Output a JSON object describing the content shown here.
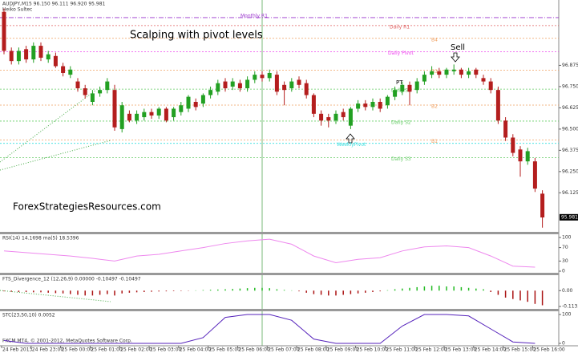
{
  "chart_data": [
    {
      "type": "candlestick",
      "header": "AUDJPY,M15  96.150 96.111 96.920 95.981",
      "subheader": "Heiko Sultec",
      "title": "Scalping with pivot levels",
      "watermark": "ForexStrategiesResources.com",
      "annotations": [
        "Sell",
        "PT"
      ],
      "bull_color": "#22a022",
      "bear_color": "#b41e1e",
      "ylim": [
        95.9,
        97.25
      ],
      "yticks": [
        {
          "value": 96.875,
          "label": "96.875"
        },
        {
          "value": 96.75,
          "label": "96.750"
        },
        {
          "value": 96.625,
          "label": "96.625"
        },
        {
          "value": 96.5,
          "label": "96.500"
        },
        {
          "value": 96.375,
          "label": "96.375"
        },
        {
          "value": 96.25,
          "label": "96.250"
        },
        {
          "value": 96.125,
          "label": "96.125"
        }
      ],
      "last": 95.981,
      "levels": [
        {
          "name": "Monthly R1",
          "value": 97.156,
          "color": "#9933cc"
        },
        {
          "name": "Daily R1",
          "value": 97.109,
          "color": "#e06060"
        },
        {
          "name": "B4",
          "value": 97.034,
          "color": "#f0a060"
        },
        {
          "name": "Daily Pivot",
          "value": 96.955,
          "color": "#ee44ee"
        },
        {
          "name": "B3",
          "value": 96.847,
          "color": "#f0a060"
        },
        {
          "name": "Daily S1",
          "value": 96.735,
          "color": "#66cc66"
        },
        {
          "name": "B2",
          "value": 96.641,
          "color": "#f0a060"
        },
        {
          "name": "Daily S2",
          "value": 96.547,
          "color": "#66cc66"
        },
        {
          "name": "B1",
          "value": 96.435,
          "color": "#f0a060"
        },
        {
          "name": "WeeklyPivot",
          "value": 96.416,
          "color": "#33dddd"
        },
        {
          "name": "Daily S3",
          "value": 96.332,
          "color": "#66cc66"
        }
      ],
      "xticks": [
        {
          "value": 0,
          "label": "24 Feb 2013"
        },
        {
          "value": 4,
          "label": "24 Feb 23:00"
        },
        {
          "value": 8,
          "label": "25 Feb 00:00"
        },
        {
          "value": 12,
          "label": "25 Feb 01:00"
        },
        {
          "value": 16,
          "label": "25 Feb 02:00"
        },
        {
          "value": 20,
          "label": "25 Feb 03:00"
        },
        {
          "value": 24,
          "label": "25 Feb 04:00"
        },
        {
          "value": 28,
          "label": "25 Feb 05:00"
        },
        {
          "value": 32,
          "label": "25 Feb 06:00"
        },
        {
          "value": 36,
          "label": "25 Feb 07:00"
        },
        {
          "value": 40,
          "label": "25 Feb 08:00"
        },
        {
          "value": 44,
          "label": "25 Feb 09:00"
        },
        {
          "value": 48,
          "label": "25 Feb 10:00"
        },
        {
          "value": 52,
          "label": "25 Feb 11:00"
        },
        {
          "value": 56,
          "label": "25 Feb 12:00"
        },
        {
          "value": 60,
          "label": "25 Feb 13:00"
        },
        {
          "value": 64,
          "label": "25 Feb 14:00"
        },
        {
          "value": 68,
          "label": "25 Feb 15:00"
        },
        {
          "value": 72,
          "label": "25 Feb 16:00"
        }
      ],
      "candles": [
        {
          "o": 97.19,
          "h": 97.21,
          "l": 96.94,
          "c": 96.96
        },
        {
          "o": 96.96,
          "h": 96.98,
          "l": 96.88,
          "c": 96.9
        },
        {
          "o": 96.9,
          "h": 96.98,
          "l": 96.88,
          "c": 96.96
        },
        {
          "o": 96.97,
          "h": 96.99,
          "l": 96.89,
          "c": 96.91
        },
        {
          "o": 96.91,
          "h": 97.01,
          "l": 96.89,
          "c": 96.99
        },
        {
          "o": 96.99,
          "h": 97.01,
          "l": 96.9,
          "c": 96.92
        },
        {
          "o": 96.91,
          "h": 96.96,
          "l": 96.89,
          "c": 96.94
        },
        {
          "o": 96.93,
          "h": 96.95,
          "l": 96.86,
          "c": 96.87
        },
        {
          "o": 96.87,
          "h": 96.89,
          "l": 96.81,
          "c": 96.83
        },
        {
          "o": 96.82,
          "h": 96.87,
          "l": 96.8,
          "c": 96.85
        },
        {
          "o": 96.78,
          "h": 96.8,
          "l": 96.72,
          "c": 96.74
        },
        {
          "o": 96.74,
          "h": 96.76,
          "l": 96.68,
          "c": 96.7
        },
        {
          "o": 96.66,
          "h": 96.73,
          "l": 96.64,
          "c": 96.71
        },
        {
          "o": 96.71,
          "h": 96.75,
          "l": 96.69,
          "c": 96.73
        },
        {
          "o": 96.73,
          "h": 96.8,
          "l": 96.71,
          "c": 96.78
        },
        {
          "o": 96.73,
          "h": 96.76,
          "l": 96.49,
          "c": 96.51
        },
        {
          "o": 96.5,
          "h": 96.66,
          "l": 96.48,
          "c": 96.64
        },
        {
          "o": 96.59,
          "h": 96.61,
          "l": 96.54,
          "c": 96.55
        },
        {
          "o": 96.55,
          "h": 96.61,
          "l": 96.53,
          "c": 96.59
        },
        {
          "o": 96.57,
          "h": 96.62,
          "l": 96.55,
          "c": 96.6
        },
        {
          "o": 96.6,
          "h": 96.62,
          "l": 96.56,
          "c": 96.58
        },
        {
          "o": 96.58,
          "h": 96.63,
          "l": 96.56,
          "c": 96.62
        },
        {
          "o": 96.62,
          "h": 96.63,
          "l": 96.54,
          "c": 96.55
        },
        {
          "o": 96.57,
          "h": 96.63,
          "l": 96.55,
          "c": 96.62
        },
        {
          "o": 96.6,
          "h": 96.66,
          "l": 96.58,
          "c": 96.64
        },
        {
          "o": 96.62,
          "h": 96.7,
          "l": 96.6,
          "c": 96.69
        },
        {
          "o": 96.66,
          "h": 96.68,
          "l": 96.61,
          "c": 96.63
        },
        {
          "o": 96.65,
          "h": 96.71,
          "l": 96.63,
          "c": 96.7
        },
        {
          "o": 96.7,
          "h": 96.75,
          "l": 96.68,
          "c": 96.73
        },
        {
          "o": 96.72,
          "h": 96.79,
          "l": 96.7,
          "c": 96.77
        },
        {
          "o": 96.78,
          "h": 96.8,
          "l": 96.72,
          "c": 96.74
        },
        {
          "o": 96.75,
          "h": 96.8,
          "l": 96.73,
          "c": 96.78
        },
        {
          "o": 96.77,
          "h": 96.79,
          "l": 96.72,
          "c": 96.74
        },
        {
          "o": 96.74,
          "h": 96.81,
          "l": 96.72,
          "c": 96.79
        },
        {
          "o": 96.79,
          "h": 96.84,
          "l": 96.77,
          "c": 96.82
        },
        {
          "o": 96.82,
          "h": 96.84,
          "l": 96.78,
          "c": 96.8
        },
        {
          "o": 96.8,
          "h": 96.85,
          "l": 96.78,
          "c": 96.83
        },
        {
          "o": 96.82,
          "h": 96.84,
          "l": 96.7,
          "c": 96.72
        },
        {
          "o": 96.76,
          "h": 96.78,
          "l": 96.64,
          "c": 96.73
        },
        {
          "o": 96.74,
          "h": 96.8,
          "l": 96.72,
          "c": 96.78
        },
        {
          "o": 96.79,
          "h": 96.81,
          "l": 96.74,
          "c": 96.76
        },
        {
          "o": 96.77,
          "h": 96.79,
          "l": 96.68,
          "c": 96.7
        },
        {
          "o": 96.7,
          "h": 96.71,
          "l": 96.57,
          "c": 96.59
        },
        {
          "o": 96.59,
          "h": 96.61,
          "l": 96.52,
          "c": 96.55
        },
        {
          "o": 96.57,
          "h": 96.59,
          "l": 96.51,
          "c": 96.55
        },
        {
          "o": 96.55,
          "h": 96.61,
          "l": 96.53,
          "c": 96.59
        },
        {
          "o": 96.6,
          "h": 96.62,
          "l": 96.55,
          "c": 96.57
        },
        {
          "o": 96.52,
          "h": 96.63,
          "l": 96.5,
          "c": 96.62
        },
        {
          "o": 96.62,
          "h": 96.67,
          "l": 96.6,
          "c": 96.65
        },
        {
          "o": 96.65,
          "h": 96.67,
          "l": 96.61,
          "c": 96.63
        },
        {
          "o": 96.63,
          "h": 96.68,
          "l": 96.61,
          "c": 96.66
        },
        {
          "o": 96.66,
          "h": 96.68,
          "l": 96.6,
          "c": 96.62
        },
        {
          "o": 96.64,
          "h": 96.7,
          "l": 96.62,
          "c": 96.69
        },
        {
          "o": 96.69,
          "h": 96.75,
          "l": 96.67,
          "c": 96.73
        },
        {
          "o": 96.72,
          "h": 96.78,
          "l": 96.7,
          "c": 96.76
        },
        {
          "o": 96.76,
          "h": 96.78,
          "l": 96.64,
          "c": 96.72
        },
        {
          "o": 96.73,
          "h": 96.8,
          "l": 96.71,
          "c": 96.78
        },
        {
          "o": 96.78,
          "h": 96.84,
          "l": 96.76,
          "c": 96.82
        },
        {
          "o": 96.82,
          "h": 96.87,
          "l": 96.8,
          "c": 96.84
        },
        {
          "o": 96.84,
          "h": 96.86,
          "l": 96.8,
          "c": 96.82
        },
        {
          "o": 96.82,
          "h": 96.86,
          "l": 96.8,
          "c": 96.85
        },
        {
          "o": 96.84,
          "h": 96.88,
          "l": 96.82,
          "c": 96.85
        },
        {
          "o": 96.85,
          "h": 96.86,
          "l": 96.8,
          "c": 96.82
        },
        {
          "o": 96.82,
          "h": 96.86,
          "l": 96.8,
          "c": 96.84
        },
        {
          "o": 96.85,
          "h": 96.86,
          "l": 96.8,
          "c": 96.82
        },
        {
          "o": 96.8,
          "h": 96.82,
          "l": 96.76,
          "c": 96.78
        },
        {
          "o": 96.78,
          "h": 96.8,
          "l": 96.71,
          "c": 96.73
        },
        {
          "o": 96.73,
          "h": 96.75,
          "l": 96.53,
          "c": 96.55
        },
        {
          "o": 96.55,
          "h": 96.57,
          "l": 96.43,
          "c": 96.45
        },
        {
          "o": 96.45,
          "h": 96.47,
          "l": 96.34,
          "c": 96.36
        },
        {
          "o": 96.38,
          "h": 96.4,
          "l": 96.22,
          "c": 96.31
        },
        {
          "o": 96.31,
          "h": 96.39,
          "l": 96.29,
          "c": 96.37
        },
        {
          "o": 96.31,
          "h": 96.33,
          "l": 96.13,
          "c": 96.15
        },
        {
          "o": 96.12,
          "h": 96.14,
          "l": 95.92,
          "c": 95.98
        }
      ]
    },
    {
      "type": "line",
      "title": "RSI(14) 14.1698 ma(5) 18.5396",
      "ylim": [
        0,
        100
      ],
      "yticks": [
        0,
        30,
        70,
        100
      ],
      "series": [
        {
          "color": "#ee88ee",
          "x": [
            0,
            3,
            6,
            9,
            12,
            15,
            18,
            21,
            24,
            27,
            30,
            33,
            36,
            39,
            42,
            45,
            48,
            51,
            54,
            57,
            60,
            63,
            66,
            69,
            72
          ],
          "values": [
            60,
            55,
            50,
            45,
            38,
            30,
            45,
            50,
            60,
            70,
            82,
            90,
            95,
            80,
            45,
            25,
            35,
            40,
            60,
            72,
            75,
            70,
            45,
            15,
            12
          ]
        }
      ]
    },
    {
      "type": "bar",
      "title": "FTS_Divergence_12 (12,26,9) 0.00000 -0.10497 -0.10497",
      "ylim": [
        -0.125,
        0.105
      ],
      "yticks": [
        {
          "value": 0,
          "label": "0.00"
        },
        -0.1135
      ],
      "up_color": "#22bb22",
      "down_color": "#aa1111",
      "values": [
        -0.005,
        -0.008,
        -0.01,
        -0.01,
        -0.012,
        -0.012,
        -0.015,
        -0.018,
        -0.02,
        -0.025,
        -0.03,
        -0.035,
        -0.035,
        -0.03,
        -0.025,
        -0.035,
        -0.02,
        -0.015,
        -0.012,
        -0.01,
        -0.008,
        -0.006,
        -0.005,
        -0.004,
        -0.003,
        -0.002,
        0.002,
        0.004,
        0.006,
        0.008,
        0.01,
        0.012,
        0.015,
        0.018,
        0.02,
        0.02,
        0.018,
        0.01,
        0.005,
        0.002,
        -0.005,
        -0.015,
        -0.025,
        -0.03,
        -0.035,
        -0.035,
        -0.03,
        -0.025,
        -0.02,
        -0.015,
        -0.01,
        -0.005,
        0.003,
        0.01,
        0.015,
        0.02,
        0.025,
        0.03,
        0.035,
        0.035,
        0.03,
        0.03,
        0.025,
        0.02,
        0.015,
        0.01,
        -0.01,
        -0.03,
        -0.05,
        -0.06,
        -0.07,
        -0.08,
        -0.095,
        -0.105
      ]
    },
    {
      "type": "line",
      "title": "STC(23,50,10) 0.0052",
      "footer": "FXCM MT4, © 2001-2012, MetaQuotes Software Corp.",
      "ylim": [
        0,
        100
      ],
      "yticks": [
        0,
        100
      ],
      "series": [
        {
          "color": "#5522bb",
          "x": [
            0,
            3,
            6,
            9,
            12,
            15,
            18,
            21,
            24,
            27,
            30,
            33,
            36,
            39,
            42,
            45,
            48,
            51,
            54,
            57,
            60,
            63,
            66,
            69,
            72
          ],
          "values": [
            10,
            0,
            0,
            0,
            0,
            0,
            0,
            0,
            0,
            20,
            90,
            100,
            100,
            80,
            15,
            0,
            0,
            0,
            60,
            100,
            100,
            95,
            50,
            5,
            0
          ]
        }
      ]
    }
  ]
}
